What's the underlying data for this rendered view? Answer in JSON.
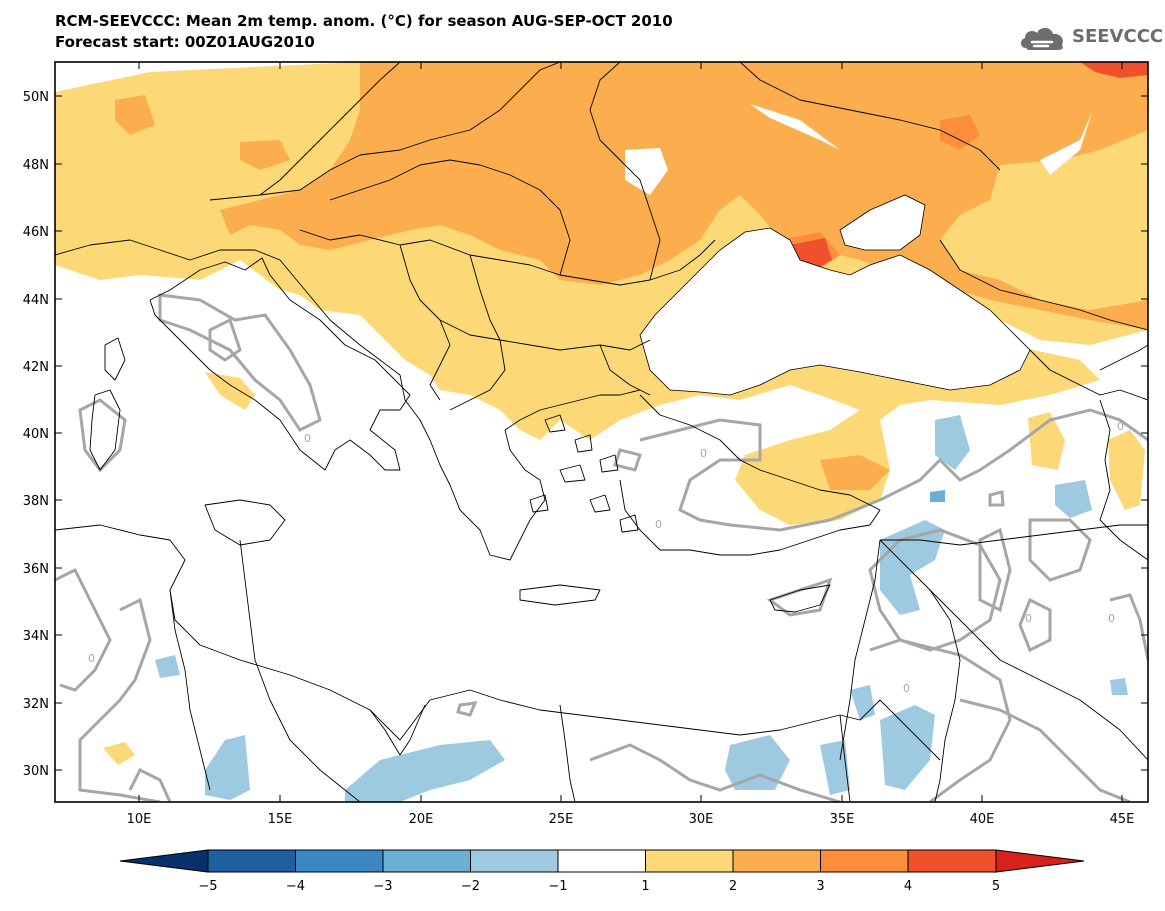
{
  "header": {
    "title_line1": "RCM-SEEVCCC: Mean 2m temp. anom. (°C) for season AUG-SEP-OCT 2010",
    "title_line2": "Forecast start: 00Z01AUG2010"
  },
  "logo": {
    "text": "SEEVCCC",
    "icon": "cloud-icon",
    "color": "#6d6d6d"
  },
  "map": {
    "lon_labels": [
      "10E",
      "15E",
      "20E",
      "25E",
      "30E",
      "35E",
      "40E",
      "45E"
    ],
    "lat_labels": [
      "50N",
      "48N",
      "46N",
      "44N",
      "42N",
      "40N",
      "38N",
      "36N",
      "34N",
      "32N",
      "30N"
    ],
    "contour_label": "0",
    "colors": {
      "ocean": "#ffffff",
      "neutral": "#ffffff",
      "warm1": "#fdd876",
      "warm2": "#fcae4e",
      "warm3": "#fb8d3c",
      "warm4": "#f0502a",
      "warm5": "#d6221b",
      "cool1": "#9ecae1",
      "cool2": "#6baed6",
      "contour": "#a6a6a6",
      "border": "#000000"
    }
  },
  "colorbar": {
    "labels": [
      "−5",
      "−4",
      "−3",
      "−2",
      "−1",
      "1",
      "2",
      "3",
      "4",
      "5"
    ],
    "colors": [
      "#08306b",
      "#1d5fa0",
      "#3a87c4",
      "#6baed6",
      "#9ecae1",
      "#ffffff",
      "#fdd876",
      "#fcae4e",
      "#fb8d3c",
      "#f0502a",
      "#d6221b"
    ]
  }
}
